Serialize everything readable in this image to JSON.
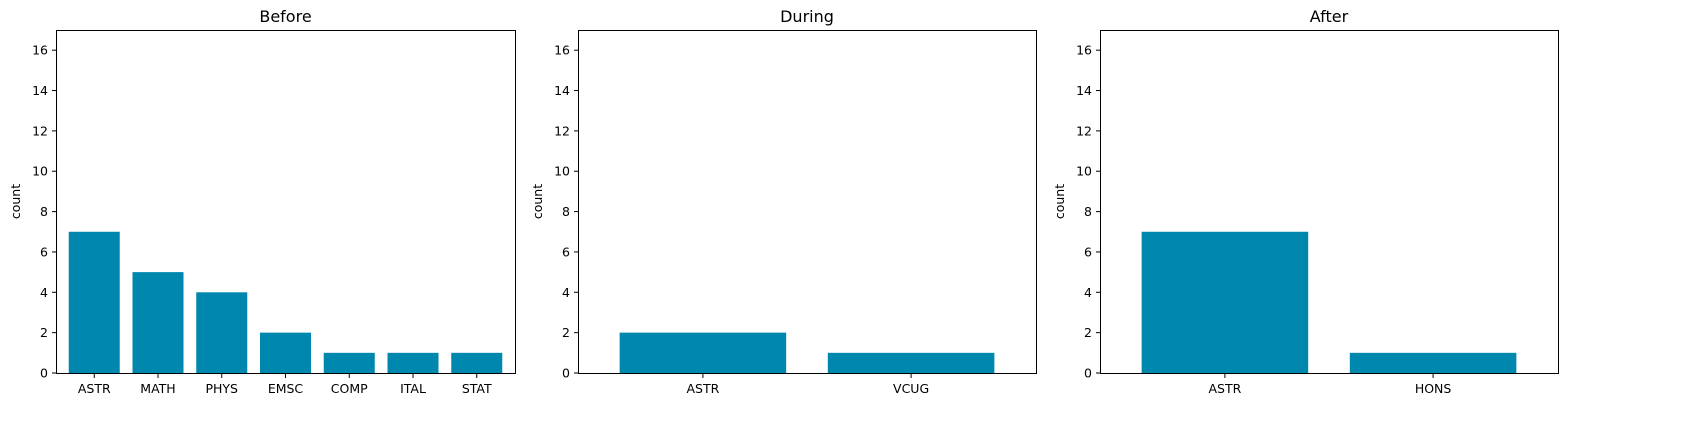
{
  "chart_data": [
    {
      "type": "bar",
      "title": "Before",
      "ylabel": "count",
      "categories": [
        "ASTR",
        "MATH",
        "PHYS",
        "EMSC",
        "COMP",
        "ITAL",
        "STAT"
      ],
      "values": [
        7,
        5,
        4,
        2,
        1,
        1,
        1
      ],
      "ylim": [
        0,
        17
      ],
      "yticks": [
        0,
        2,
        4,
        6,
        8,
        10,
        12,
        14,
        16
      ],
      "color": "#0087ae"
    },
    {
      "type": "bar",
      "title": "During",
      "ylabel": "count",
      "categories": [
        "ASTR",
        "VCUG"
      ],
      "values": [
        2,
        1
      ],
      "ylim": [
        0,
        17
      ],
      "yticks": [
        0,
        2,
        4,
        6,
        8,
        10,
        12,
        14,
        16
      ],
      "color": "#0087ae"
    },
    {
      "type": "bar",
      "title": "After",
      "ylabel": "count",
      "categories": [
        "ASTR",
        "HONS"
      ],
      "values": [
        7,
        1
      ],
      "ylim": [
        0,
        17
      ],
      "yticks": [
        0,
        2,
        4,
        6,
        8,
        10,
        12,
        14,
        16
      ],
      "color": "#0087ae"
    }
  ]
}
